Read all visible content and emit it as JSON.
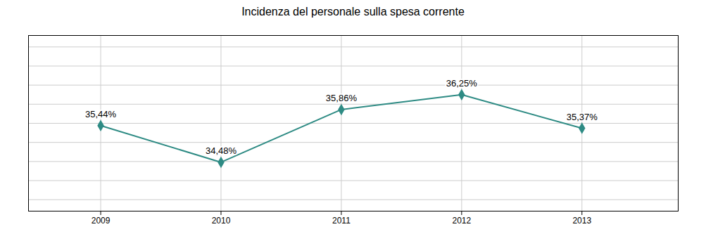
{
  "chart_data": {
    "type": "line",
    "title": "Incidenza del personale sulla spesa corrente",
    "x": [
      2009,
      2010,
      2011,
      2012,
      2013
    ],
    "values": [
      35.44,
      34.48,
      35.86,
      36.25,
      35.37
    ],
    "value_labels": [
      "35,44%",
      "34,48%",
      "35,86%",
      "36,25%",
      "35,37%"
    ],
    "data_labels": true,
    "color": "#2e8b84",
    "marker": "diamond",
    "xlim": [
      2008.4,
      2013.8
    ],
    "xticks": [
      2009,
      2010,
      2011,
      2012,
      2013
    ],
    "ylim": [
      33.2,
      37.8
    ],
    "yticks": [
      33.5,
      34,
      34.5,
      35,
      35.5,
      36,
      36.5,
      37,
      37.5
    ],
    "grid": true,
    "tick_labels": "x"
  }
}
